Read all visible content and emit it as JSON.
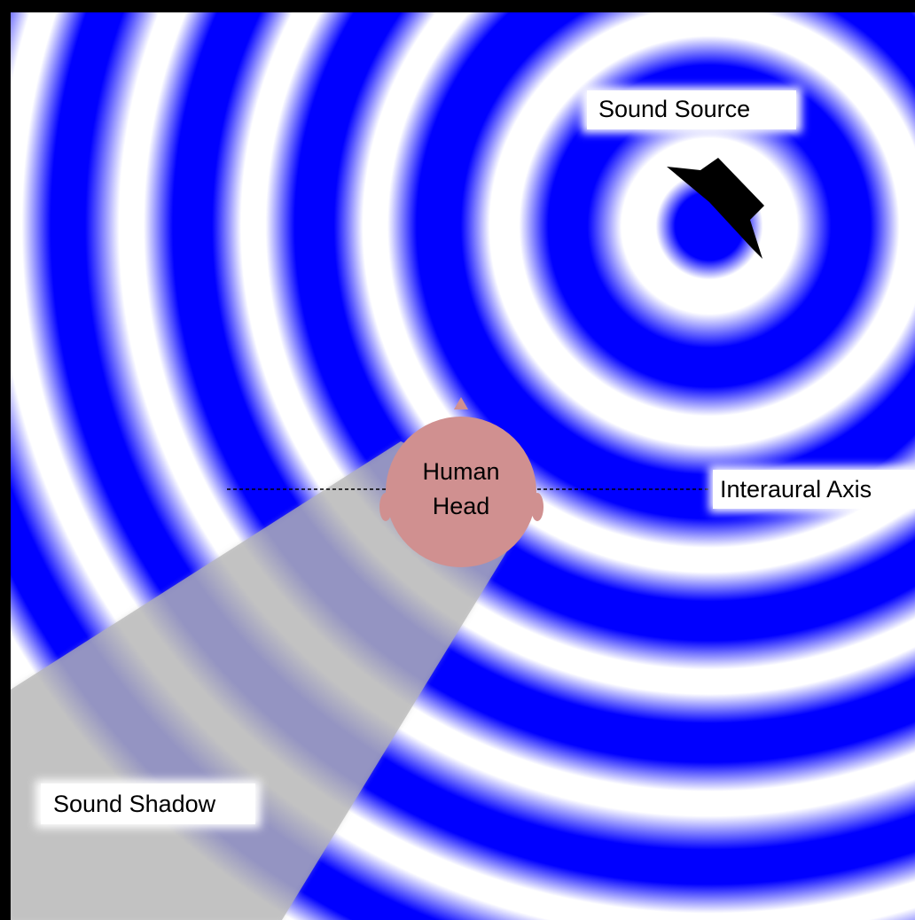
{
  "labels": {
    "sound_source": "Sound Source",
    "human_head_line1": "Human",
    "human_head_line2": "Head",
    "interaural_axis": "Interaural Axis",
    "sound_shadow": "Sound Shadow"
  },
  "colors": {
    "wave": "#0000ff",
    "background": "#ffffff",
    "frame": "#000000",
    "shadow": "#b4b4b4",
    "head": "#d09090",
    "speaker": "#000000",
    "label_bg": "#ffffff"
  },
  "icons": {
    "sound_source": "speaker-icon",
    "listener": "human-head-icon"
  }
}
